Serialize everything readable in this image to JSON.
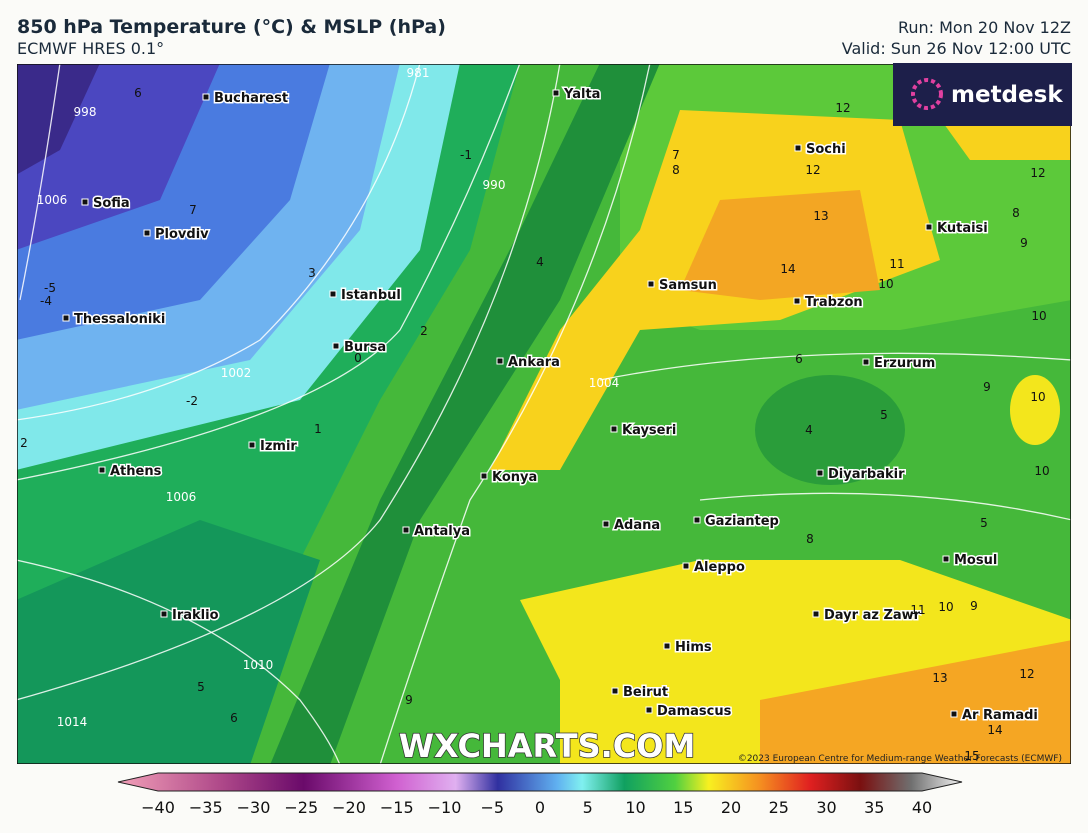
{
  "header": {
    "title": "850 hPa Temperature (°C) & MSLP (hPa)",
    "subtitle": "ECMWF HRES 0.1°",
    "run": "Run: Mon 20 Nov 12Z",
    "valid": "Valid: Sun 26 Nov 12:00 UTC"
  },
  "logo": "metdesk",
  "watermark": "WXCHARTS.COM",
  "copyright": "©2023 European Centre for Medium-range Weather Forecasts (ECMWF)",
  "cities": [
    "Bucharest",
    "Yalta",
    "Sochi",
    "Sofia",
    "Plovdiv",
    "Kutaisi",
    "Samsun",
    "Trabzon",
    "Istanbul",
    "Thessaloniki",
    "Bursa",
    "Ankara",
    "Erzurum",
    "Kayseri",
    "Izmir",
    "Athens",
    "Konya",
    "Diyarbakir",
    "Adana",
    "Gaziantep",
    "Antalya",
    "Mosul",
    "Aleppo",
    "Dayr az Zawr",
    "Iraklio",
    "Hims",
    "Beirut",
    "Damascus",
    "Ar Ramadi"
  ],
  "contour_labels": [
    "6",
    "998",
    "981",
    "-1",
    "990",
    "1006",
    "7",
    "3",
    "-5",
    "-4",
    "2",
    "0",
    "1002",
    "-2",
    "1",
    "2",
    "1006",
    "1010",
    "5",
    "6",
    "1014",
    "9",
    "4",
    "7",
    "8",
    "12",
    "12",
    "13",
    "14",
    "10",
    "11",
    "12",
    "8",
    "9",
    "10",
    "6",
    "5",
    "4",
    "9",
    "10",
    "10",
    "5",
    "8",
    "11",
    "10",
    "9",
    "13",
    "12",
    "14",
    "15",
    "1004"
  ],
  "colorbar": {
    "ticks": [
      "−40",
      "−35",
      "−30",
      "−25",
      "−20",
      "−15",
      "−10",
      "−5",
      "0",
      "5",
      "10",
      "15",
      "20",
      "25",
      "30",
      "35",
      "40"
    ]
  }
}
